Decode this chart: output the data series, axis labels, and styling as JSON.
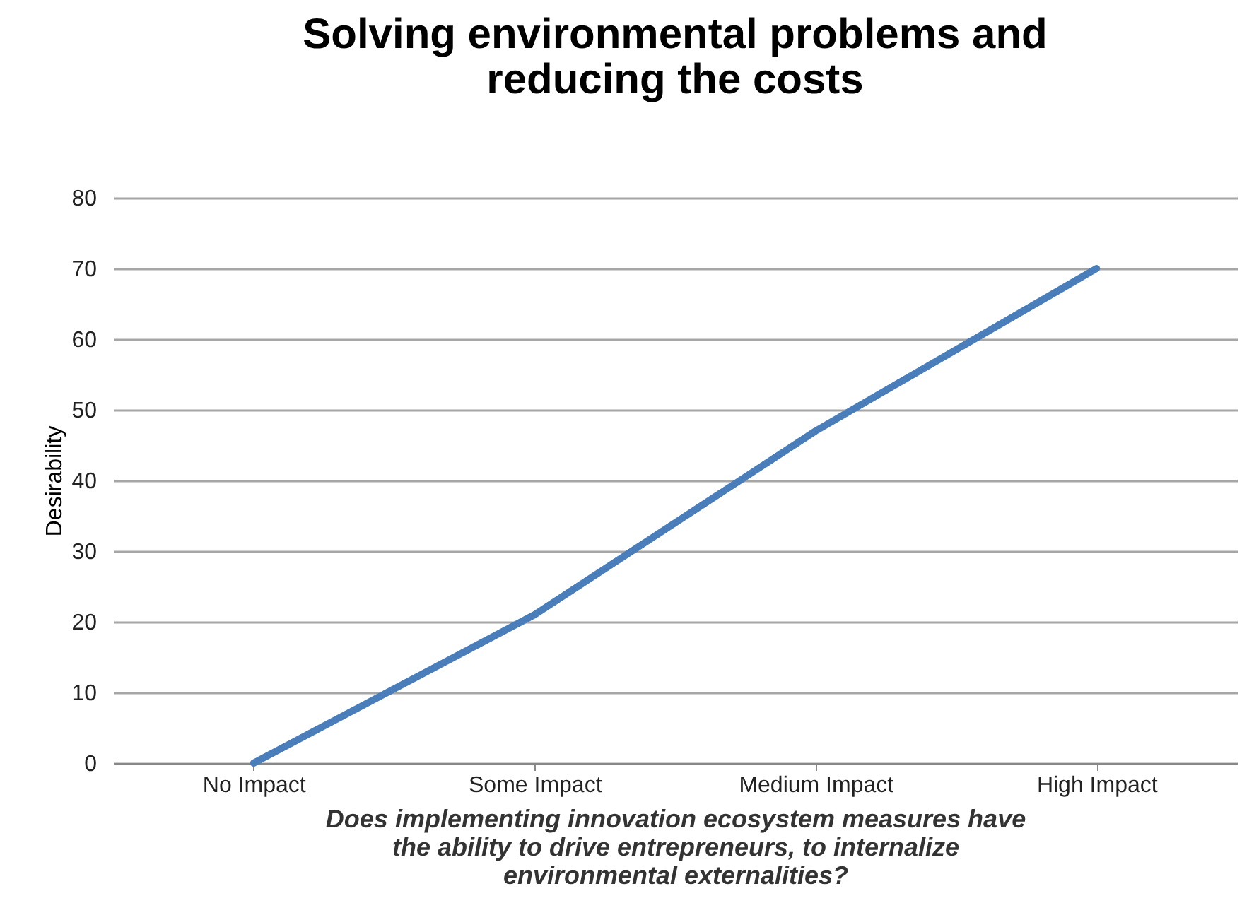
{
  "chart_data": {
    "type": "line",
    "title": [
      "Solving environmental problems and",
      "reducing the costs"
    ],
    "xlabel": [
      "Does implementing  innovation  ecosystem measures have",
      "the ability  to drive entrepreneurs, to internalize",
      "environmental  externalities?"
    ],
    "ylabel": "Desirability",
    "categories": [
      "No Impact",
      "Some Impact",
      "Medium Impact",
      "High Impact"
    ],
    "series": [
      {
        "color": "#4a7ebb",
        "values": [
          0,
          21,
          47,
          70
        ]
      }
    ],
    "ylim": [
      0,
      80
    ],
    "yticks": [
      0,
      10,
      20,
      30,
      40,
      50,
      60,
      70,
      80
    ],
    "grid": "y",
    "marker": "none",
    "line_style": "solid"
  }
}
